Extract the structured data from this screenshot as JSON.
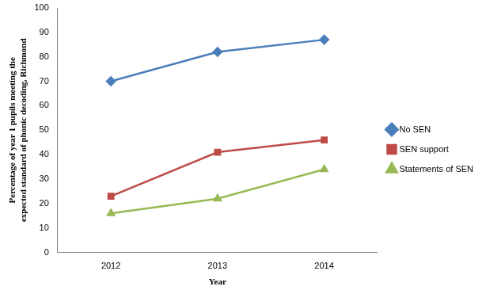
{
  "chart_data": {
    "type": "line",
    "x_label": "Year",
    "y_label": "Percentage of year 1 pupils meeting the expected standard of phonic decoding, Richmond",
    "categories": [
      "2012",
      "2013",
      "2014"
    ],
    "series": [
      {
        "name": "No SEN",
        "color": "#4a7ebb",
        "marker": "diamond",
        "values": [
          70,
          82,
          87
        ]
      },
      {
        "name": "SEN support",
        "color": "#be4b48",
        "marker": "square",
        "values": [
          23,
          41,
          46
        ]
      },
      {
        "name": "Statements of SEN",
        "color": "#98b954",
        "marker": "triangle",
        "values": [
          16,
          22,
          34
        ]
      }
    ],
    "ylim": [
      0,
      100
    ],
    "yticks": [
      0,
      10,
      20,
      30,
      40,
      50,
      60,
      70,
      80,
      90,
      100
    ],
    "grid": false,
    "legend": "right"
  }
}
